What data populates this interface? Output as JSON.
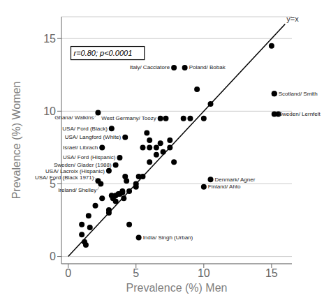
{
  "chart_data": {
    "type": "scatter",
    "xlabel": "Prevalence (%) Men",
    "ylabel": "Prevalence (%) Women",
    "xlim": [
      -0.5,
      16.5
    ],
    "ylim": [
      -0.5,
      16.5
    ],
    "xticks": [
      0,
      5,
      10,
      15
    ],
    "yticks": [
      0,
      5,
      10,
      15
    ],
    "grid": "y",
    "color": "#000000",
    "annotation": "r=0.80; p<0.0001",
    "reference_line": {
      "x": [
        0,
        16
      ],
      "y": [
        0,
        16
      ],
      "label": "y=x",
      "color": "#000000"
    },
    "points": [
      [
        1.0,
        1.5
      ],
      [
        1.0,
        2.2
      ],
      [
        1.2,
        1.0
      ],
      [
        1.3,
        0.8
      ],
      [
        1.5,
        2.8
      ],
      [
        1.6,
        2.0
      ],
      [
        2.0,
        3.5
      ],
      [
        2.5,
        4.0
      ],
      [
        3.0,
        3.2
      ],
      [
        3.0,
        3.0
      ],
      [
        3.2,
        4.2
      ],
      [
        3.3,
        4.0
      ],
      [
        3.5,
        4.2
      ],
      [
        3.5,
        3.8
      ],
      [
        3.7,
        4.3
      ],
      [
        3.8,
        4.3
      ],
      [
        4.0,
        4.5
      ],
      [
        4.0,
        4.4
      ],
      [
        4.1,
        4.0
      ],
      [
        4.2,
        5.5
      ],
      [
        4.3,
        5.2
      ],
      [
        4.5,
        4.5
      ],
      [
        4.5,
        2.2
      ],
      [
        5.0,
        4.8
      ],
      [
        5.0,
        5.0
      ],
      [
        5.2,
        5.5
      ],
      [
        5.5,
        7.5
      ],
      [
        5.5,
        5.5
      ],
      [
        5.8,
        8.5
      ],
      [
        6.0,
        8.0
      ],
      [
        6.0,
        7.5
      ],
      [
        6.0,
        6.5
      ],
      [
        6.5,
        7.0
      ],
      [
        6.5,
        7.5
      ],
      [
        6.8,
        7.8
      ],
      [
        7.0,
        7.2
      ],
      [
        7.2,
        9.5
      ],
      [
        7.5,
        7.5
      ],
      [
        7.5,
        8.0
      ],
      [
        7.8,
        6.5
      ],
      [
        8.5,
        9.5
      ],
      [
        9.0,
        9.5
      ],
      [
        9.5,
        11.5
      ],
      [
        10.0,
        9.5
      ],
      [
        10.5,
        10.5
      ],
      [
        15.0,
        14.5
      ],
      [
        15.2,
        11.2
      ],
      [
        15.5,
        9.8
      ]
    ],
    "labeled_points": [
      {
        "x": 2.2,
        "y": 9.9,
        "label": "Ghana/ Walkins",
        "side": "left"
      },
      {
        "x": 3.2,
        "y": 8.8,
        "label": "USA/ Ford (Black)",
        "side": "left"
      },
      {
        "x": 4.2,
        "y": 8.2,
        "label": "USA/ Langford (White)",
        "side": "left"
      },
      {
        "x": 2.5,
        "y": 7.5,
        "label": "Israel/ Librach",
        "side": "left"
      },
      {
        "x": 3.8,
        "y": 6.8,
        "label": "USA/ Ford (Hispanic)",
        "side": "left"
      },
      {
        "x": 3.5,
        "y": 6.3,
        "label": "Sweden/ Glader (1988)",
        "side": "left"
      },
      {
        "x": 3.0,
        "y": 5.9,
        "label": "USA/ Lacroix (Hispanic)",
        "side": "left"
      },
      {
        "x": 2.2,
        "y": 5.2,
        "label": "USA/ Ford (Black 1971)",
        "side": "left"
      },
      {
        "x": 2.4,
        "y": 5.0,
        "label": "Ireland/ Shelley",
        "side": "left"
      },
      {
        "x": 6.8,
        "y": 9.5,
        "label": "West Germany/ Toozy",
        "side": "left"
      },
      {
        "x": 7.8,
        "y": 13.0,
        "label": "Italy/ Cacciatore",
        "side": "left"
      },
      {
        "x": 8.6,
        "y": 13.0,
        "label": "Poland/ Bobak",
        "side": "right"
      },
      {
        "x": 10.5,
        "y": 5.3,
        "label": "Denmark/ Agner",
        "side": "right"
      },
      {
        "x": 10.0,
        "y": 4.8,
        "label": "Finland/ Ahto",
        "side": "right"
      },
      {
        "x": 15.2,
        "y": 11.2,
        "label": "Scotland/ Smith",
        "side": "right"
      },
      {
        "x": 15.2,
        "y": 9.8,
        "label": "Sweden/ Lernfelt",
        "side": "right"
      },
      {
        "x": 5.2,
        "y": 1.3,
        "label": "India/ Singh (Urban)",
        "side": "right"
      }
    ]
  }
}
